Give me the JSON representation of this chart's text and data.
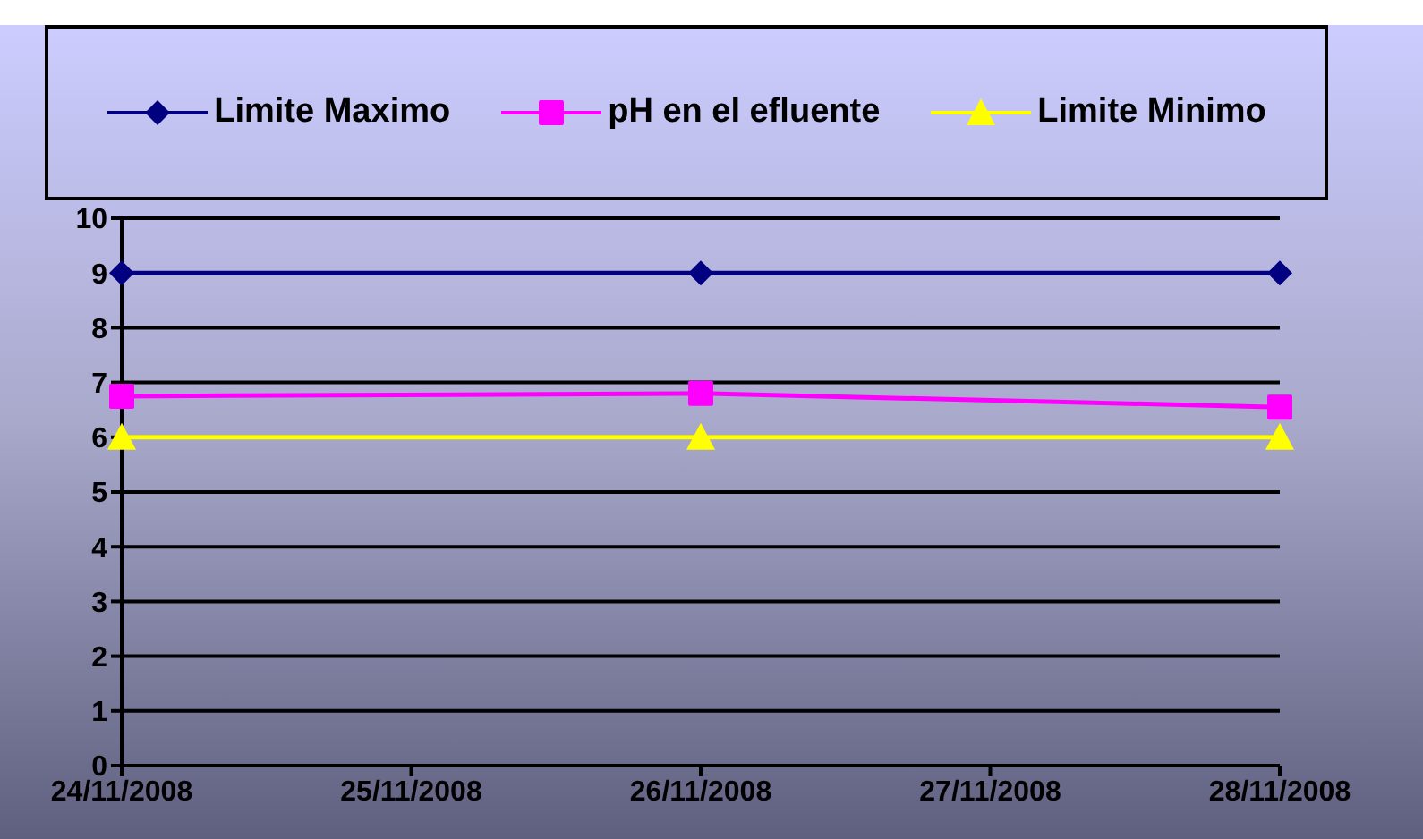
{
  "chart_data": {
    "type": "line",
    "categories": [
      "24/11/2008",
      "25/11/2008",
      "26/11/2008",
      "27/11/2008",
      "28/11/2008"
    ],
    "series": [
      {
        "name": "Limite Maximo",
        "color": "#000080",
        "marker": "diamond",
        "values": [
          9,
          null,
          9,
          null,
          9
        ]
      },
      {
        "name": "pH en el efluente",
        "color": "#ff00ff",
        "marker": "square",
        "values": [
          6.75,
          null,
          6.8,
          null,
          6.55
        ]
      },
      {
        "name": "Limite Minimo",
        "color": "#ffff00",
        "marker": "triangle",
        "values": [
          6,
          null,
          6,
          null,
          6
        ]
      }
    ],
    "ylim": [
      0,
      10
    ],
    "yticks": [
      0,
      1,
      2,
      3,
      4,
      5,
      6,
      7,
      8,
      9,
      10
    ],
    "grid": "y",
    "legend": "top",
    "line_style": "solid"
  }
}
